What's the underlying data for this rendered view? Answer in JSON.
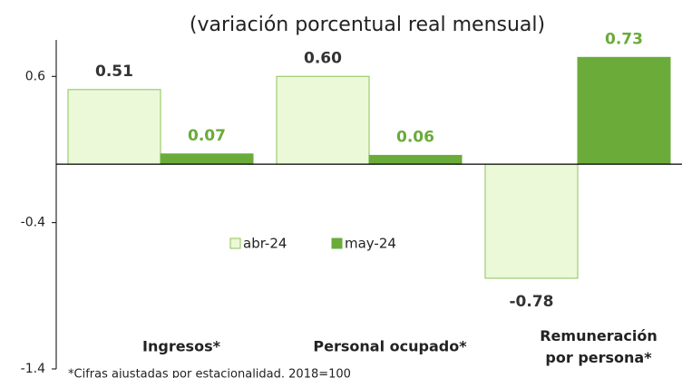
{
  "chart_data": {
    "type": "bar",
    "title": "(variación porcentual real mensual)",
    "categories": [
      "Ingresos*",
      "Personal ocupado*",
      "Remuneración\npor persona*"
    ],
    "series": [
      {
        "name": "abr-24",
        "color": "#ebf9d8",
        "values": [
          0.51,
          0.6,
          -0.78
        ],
        "value_labels": [
          "0.51",
          "0.60",
          "-0.78"
        ]
      },
      {
        "name": "may-24",
        "color": "#6aab3a",
        "values": [
          0.07,
          0.06,
          0.73
        ],
        "value_labels": [
          "0.07",
          "0.06",
          "0.73"
        ]
      }
    ],
    "ylim": [
      -1.4,
      0.8
    ],
    "yticks": [
      0.6,
      -0.4,
      -1.4
    ],
    "note": "*Cifras ajustadas por estacionalidad. 2018=100"
  }
}
